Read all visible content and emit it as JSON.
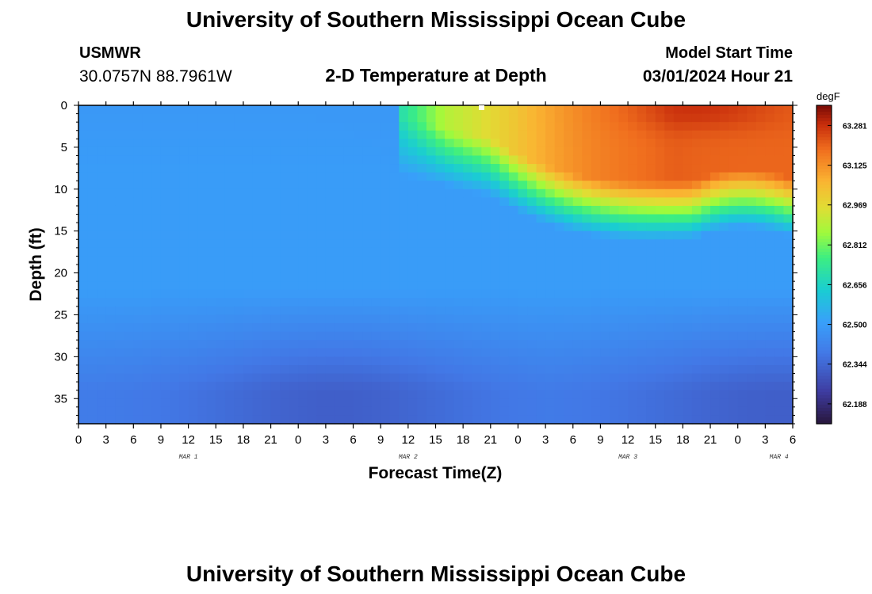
{
  "header": {
    "title": "University of Southern Mississippi Ocean Cube",
    "station_id": "USMWR",
    "station_coords": "30.0757N  88.7961W",
    "subtitle": "2-D Temperature at Depth",
    "model_start_label": "Model Start Time",
    "model_start_value": "03/01/2024 Hour 21"
  },
  "footer": {
    "title": "University of Southern Mississippi Ocean Cube"
  },
  "chart_data": {
    "type": "heatmap",
    "title": "2-D Temperature at Depth",
    "xlabel": "Forecast Time(Z)",
    "ylabel": "Depth (ft)",
    "x_unit": "hours (Z)",
    "x_tick_labels": [
      "0",
      "3",
      "6",
      "9",
      "12",
      "15",
      "18",
      "21",
      "0",
      "3",
      "6",
      "9",
      "12",
      "15",
      "18",
      "21",
      "0",
      "3",
      "6",
      "9",
      "12",
      "15",
      "18",
      "21",
      "0",
      "3",
      "6"
    ],
    "x_day_labels": [
      {
        "label": "MAR 1",
        "tick_index": 4
      },
      {
        "label": "MAR 2",
        "tick_index": 12
      },
      {
        "label": "MAR 3",
        "tick_index": 20
      },
      {
        "label": "MAR 4",
        "tick_index": 25.5
      }
    ],
    "y_ticks": [
      0,
      5,
      10,
      15,
      20,
      25,
      30,
      35
    ],
    "ylim": [
      0,
      38
    ],
    "y_inverted": true,
    "colorbar": {
      "unit": "degF",
      "min": 62.11,
      "max": 63.36,
      "tick_values": [
        63.281,
        63.125,
        62.969,
        62.812,
        62.656,
        62.5,
        62.344,
        62.188
      ],
      "tick_labels": [
        "63.281",
        "63.125",
        "62.969",
        "62.812",
        "62.656",
        "62.500",
        "62.344",
        "62.188"
      ]
    },
    "grid": false,
    "legend": "colorbar-right"
  }
}
